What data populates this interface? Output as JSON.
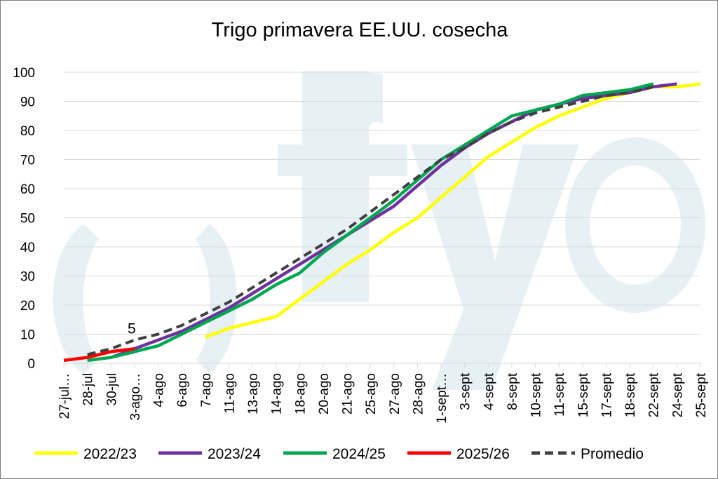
{
  "chart_data": {
    "type": "line",
    "title": "Trigo primavera EE.UU. cosecha",
    "ylim": [
      0,
      100
    ],
    "yticks": [
      0,
      10,
      20,
      30,
      40,
      50,
      60,
      70,
      80,
      90,
      100
    ],
    "grid": true,
    "legend_position": "bottom",
    "watermark": "fyo",
    "categories": [
      "27-jul…",
      "28-jul",
      "30-jul",
      "3-ago…",
      "4-ago",
      "6-ago",
      "7-ago",
      "11-ago",
      "13-ago",
      "14-ago",
      "18-ago",
      "20-ago",
      "21-ago",
      "25-ago",
      "27-ago",
      "28-ago",
      "1-sept…",
      "3-sept",
      "4-sept",
      "8-sept",
      "10-sept",
      "11-sept",
      "15-sept",
      "17-sept",
      "18-sept",
      "22-sept",
      "24-sept",
      "25-sept"
    ],
    "series": [
      {
        "name": "2022/23",
        "color": "#ffff00",
        "dash": false,
        "values": [
          null,
          null,
          null,
          null,
          null,
          null,
          9,
          12,
          14,
          16,
          22,
          28,
          34,
          39,
          45,
          50,
          57,
          64,
          71,
          76,
          81,
          85,
          88,
          91,
          93,
          95,
          95,
          96
        ]
      },
      {
        "name": "2023/24",
        "color": "#7030a0",
        "dash": false,
        "values": [
          null,
          null,
          2,
          5,
          8,
          11,
          15,
          19,
          24,
          29,
          34,
          39,
          44,
          49,
          54,
          61,
          68,
          74,
          79,
          83,
          87,
          89,
          91,
          92,
          93,
          95,
          96,
          null
        ]
      },
      {
        "name": "2024/25",
        "color": "#00a651",
        "dash": false,
        "values": [
          null,
          1,
          2,
          4,
          6,
          10,
          14,
          18,
          22,
          27,
          31,
          38,
          44,
          50,
          56,
          63,
          70,
          75,
          80,
          85,
          87,
          89,
          92,
          93,
          94,
          96,
          null,
          null
        ]
      },
      {
        "name": "2025/26",
        "color": "#ff0000",
        "dash": false,
        "values": [
          1,
          2,
          4,
          5,
          null,
          null,
          null,
          null,
          null,
          null,
          null,
          null,
          null,
          null,
          null,
          null,
          null,
          null,
          null,
          null,
          null,
          null,
          null,
          null,
          null,
          null,
          null,
          null
        ]
      },
      {
        "name": "Promedio",
        "color": "#404040",
        "dash": true,
        "values": [
          null,
          3,
          5,
          8,
          10,
          13,
          17,
          21,
          26,
          31,
          36,
          41,
          46,
          52,
          58,
          64,
          70,
          74,
          79,
          83,
          86,
          88,
          90,
          92,
          93,
          95,
          null,
          null
        ]
      }
    ],
    "annotations": [
      {
        "text": "5",
        "category": "3-ago…",
        "series": "2025/26"
      }
    ]
  }
}
